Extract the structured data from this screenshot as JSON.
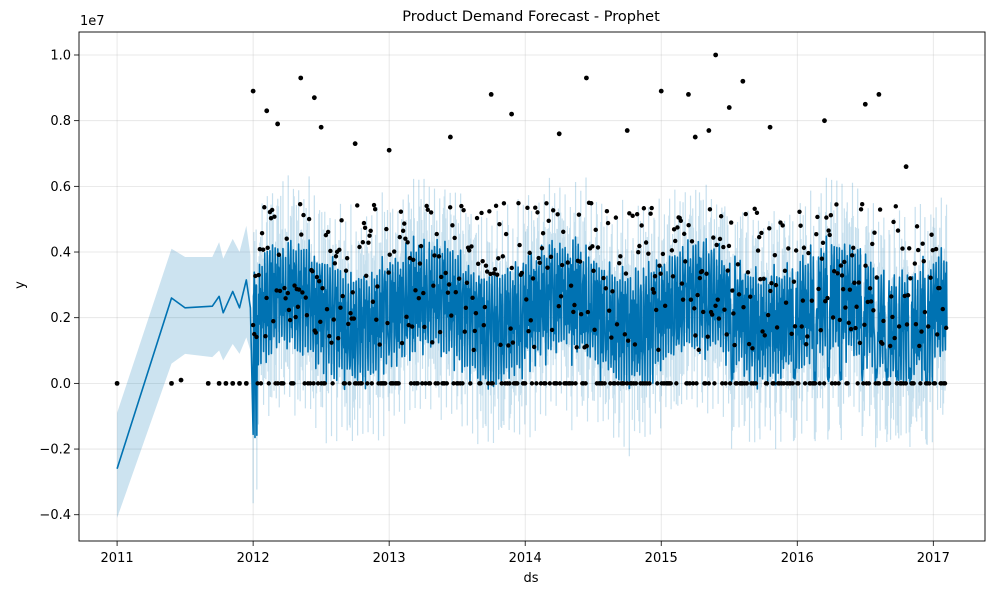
{
  "chart_data": {
    "type": "line",
    "title": "Product Demand Forecast - Prophet",
    "xlabel": "ds",
    "ylabel": "y",
    "y_multiplier_label": "1e7",
    "x_ticks": [
      "2011",
      "2012",
      "2013",
      "2014",
      "2015",
      "2016",
      "2017"
    ],
    "y_ticks": [
      "−0.4",
      "−0.2",
      "0.0",
      "0.2",
      "0.4",
      "0.6",
      "0.8",
      "1.0"
    ],
    "xlim": [
      2010.72,
      2017.38
    ],
    "ylim": [
      -0.48,
      1.07
    ],
    "grid": true,
    "colors": {
      "forecast": "#0072B2",
      "interval": "#0072B2",
      "observed": "#000000"
    },
    "forecast_sparse": {
      "x": [
        2011.0,
        2011.4,
        2011.5,
        2011.7,
        2011.75,
        2011.78,
        2011.85,
        2011.9,
        2011.95,
        2011.98
      ],
      "yhat": [
        -0.26,
        0.26,
        0.23,
        0.235,
        0.265,
        0.215,
        0.28,
        0.23,
        0.315,
        0.23
      ],
      "lower": [
        -0.41,
        0.06,
        0.09,
        0.08,
        0.1,
        0.07,
        0.12,
        0.09,
        0.14,
        0.1
      ],
      "upper": [
        -0.09,
        0.41,
        0.385,
        0.385,
        0.43,
        0.38,
        0.44,
        0.4,
        0.48,
        0.39
      ]
    },
    "observed_early": {
      "x": [
        2011.0,
        2011.4,
        2011.47,
        2011.67,
        2011.75,
        2011.8,
        2011.85,
        2011.9,
        2011.95
      ],
      "y": [
        0.0,
        0.0,
        0.01,
        0.0,
        0.0,
        0.0,
        0.0,
        0.0,
        0.0
      ]
    },
    "observed_outliers": {
      "x": [
        2012.0,
        2012.1,
        2012.18,
        2012.35,
        2012.45,
        2012.5,
        2012.75,
        2013.0,
        2013.45,
        2013.75,
        2013.9,
        2014.25,
        2014.45,
        2014.75,
        2015.0,
        2015.2,
        2015.25,
        2015.35,
        2015.4,
        2015.5,
        2015.6,
        2015.8,
        2016.2,
        2016.5,
        2016.6,
        2016.8
      ],
      "y": [
        0.89,
        0.83,
        0.79,
        0.93,
        0.87,
        0.78,
        0.73,
        0.71,
        0.75,
        0.88,
        0.82,
        0.76,
        0.93,
        0.77,
        0.89,
        0.88,
        0.75,
        0.77,
        1.0,
        0.84,
        0.92,
        0.78,
        0.8,
        0.85,
        0.88,
        0.66
      ]
    },
    "dense_range": {
      "x": [
        2012.0,
        2017.1
      ]
    }
  }
}
